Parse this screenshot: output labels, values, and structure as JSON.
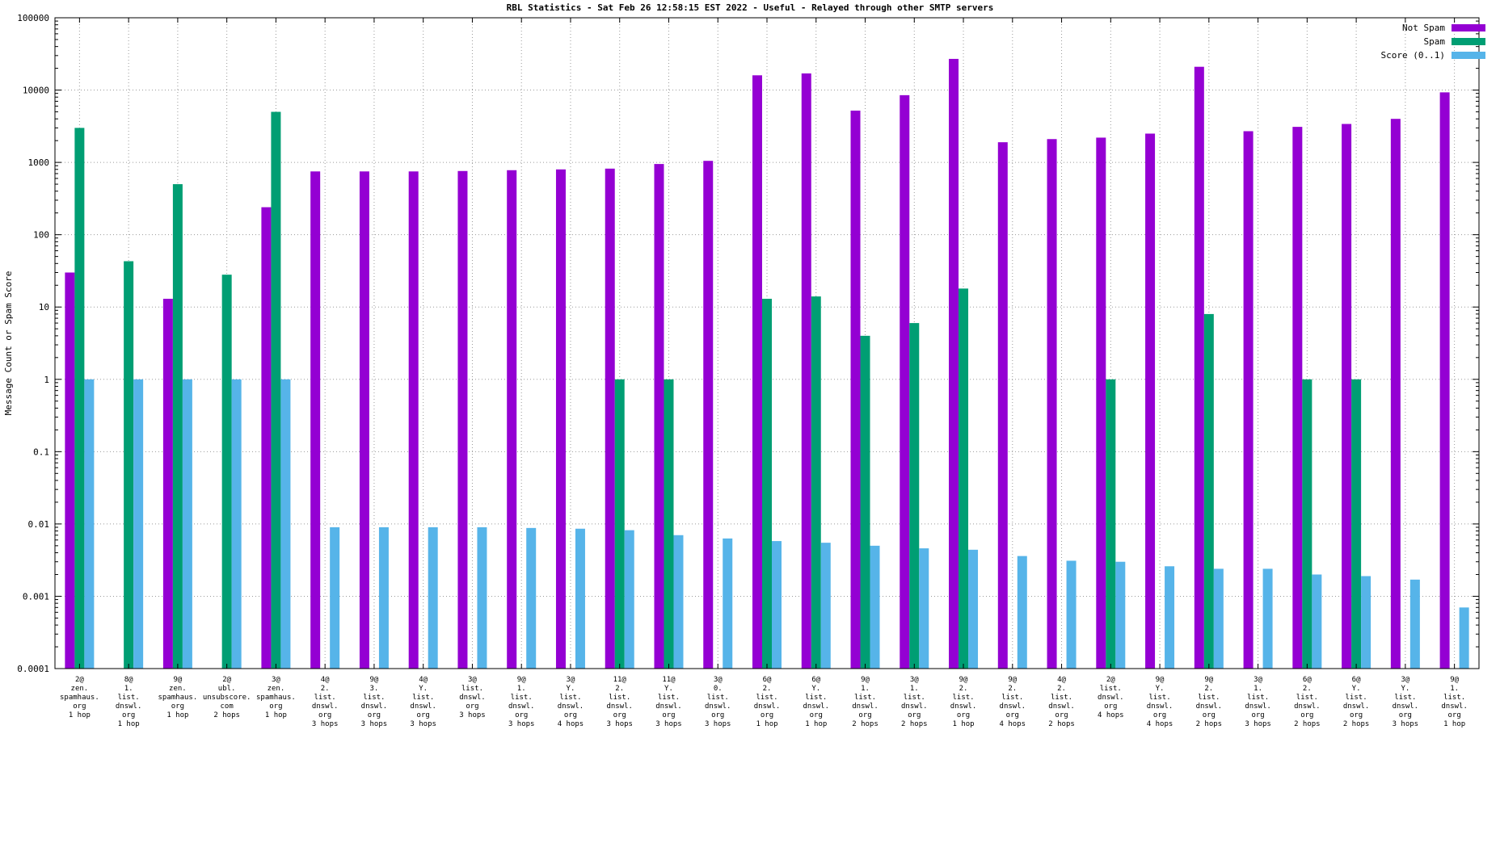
{
  "chart_data": {
    "type": "bar",
    "title": "RBL Statistics - Sat Feb 26 12:58:15 EST 2022 - Useful - Relayed through other SMTP servers",
    "ylabel": "Message Count or Spam Score",
    "y_scale": "log",
    "ylim": [
      0.0001,
      100000
    ],
    "y_ticks": [
      "100000",
      "10000",
      "1000",
      "100",
      "10",
      "1",
      "0.1",
      "0.01",
      "0.001",
      "0.0001"
    ],
    "grid": true,
    "legend_position": "top-right",
    "series_meta": [
      {
        "name": "Not Spam",
        "key": "notspam",
        "color": "#9400d3"
      },
      {
        "name": "Spam",
        "key": "spam",
        "color": "#009e73"
      },
      {
        "name": "Score (0..1)",
        "key": "score",
        "color": "#56b4e9"
      }
    ],
    "groups": [
      {
        "label_lines": [
          "2@",
          "zen.",
          "spamhaus.",
          "org",
          "1 hop"
        ],
        "notspam": 30,
        "spam": 3000,
        "score": 1
      },
      {
        "label_lines": [
          "8@",
          "1.",
          "list.",
          "dnswl.",
          "org",
          "1 hop"
        ],
        "notspam": null,
        "spam": 43,
        "score": 1
      },
      {
        "label_lines": [
          "9@",
          "zen.",
          "spamhaus.",
          "org",
          "1 hop"
        ],
        "notspam": 13,
        "spam": 500,
        "score": 1
      },
      {
        "label_lines": [
          "2@",
          "ubl.",
          "unsubscore.",
          "com",
          "2 hops"
        ],
        "notspam": null,
        "spam": 28,
        "score": 1
      },
      {
        "label_lines": [
          "3@",
          "zen.",
          "spamhaus.",
          "org",
          "1 hop"
        ],
        "notspam": 240,
        "spam": 5000,
        "score": 1
      },
      {
        "label_lines": [
          "4@",
          "2.",
          "list.",
          "dnswl.",
          "org",
          "3 hops"
        ],
        "notspam": 750,
        "spam": null,
        "score": 0.009
      },
      {
        "label_lines": [
          "9@",
          "3.",
          "list.",
          "dnswl.",
          "org",
          "3 hops"
        ],
        "notspam": 750,
        "spam": null,
        "score": 0.009
      },
      {
        "label_lines": [
          "4@",
          "Y.",
          "list.",
          "dnswl.",
          "org",
          "3 hops"
        ],
        "notspam": 750,
        "spam": null,
        "score": 0.009
      },
      {
        "label_lines": [
          "3@",
          "list.",
          "dnswl.",
          "org",
          "3 hops"
        ],
        "notspam": 760,
        "spam": null,
        "score": 0.009
      },
      {
        "label_lines": [
          "9@",
          "1.",
          "list.",
          "dnswl.",
          "org",
          "3 hops"
        ],
        "notspam": 780,
        "spam": null,
        "score": 0.0088
      },
      {
        "label_lines": [
          "3@",
          "Y.",
          "list.",
          "dnswl.",
          "org",
          "4 hops"
        ],
        "notspam": 800,
        "spam": null,
        "score": 0.0086
      },
      {
        "label_lines": [
          "11@",
          "2.",
          "list.",
          "dnswl.",
          "org",
          "3 hops"
        ],
        "notspam": 820,
        "spam": 1,
        "score": 0.0082
      },
      {
        "label_lines": [
          "11@",
          "Y.",
          "list.",
          "dnswl.",
          "org",
          "3 hops"
        ],
        "notspam": 950,
        "spam": 1,
        "score": 0.007
      },
      {
        "label_lines": [
          "3@",
          "0.",
          "list.",
          "dnswl.",
          "org",
          "3 hops"
        ],
        "notspam": 1050,
        "spam": null,
        "score": 0.0063
      },
      {
        "label_lines": [
          "6@",
          "2.",
          "list.",
          "dnswl.",
          "org",
          "1 hop"
        ],
        "notspam": 16000,
        "spam": 13,
        "score": 0.0058
      },
      {
        "label_lines": [
          "6@",
          "Y.",
          "list.",
          "dnswl.",
          "org",
          "1 hop"
        ],
        "notspam": 17000,
        "spam": 14,
        "score": 0.0055
      },
      {
        "label_lines": [
          "9@",
          "1.",
          "list.",
          "dnswl.",
          "org",
          "2 hops"
        ],
        "notspam": 5200,
        "spam": 4,
        "score": 0.005
      },
      {
        "label_lines": [
          "3@",
          "1.",
          "list.",
          "dnswl.",
          "org",
          "2 hops"
        ],
        "notspam": 8500,
        "spam": 6,
        "score": 0.0046
      },
      {
        "label_lines": [
          "9@",
          "2.",
          "list.",
          "dnswl.",
          "org",
          "1 hop"
        ],
        "notspam": 27000,
        "spam": 18,
        "score": 0.0044
      },
      {
        "label_lines": [
          "9@",
          "2.",
          "list.",
          "dnswl.",
          "org",
          "4 hops"
        ],
        "notspam": 1900,
        "spam": null,
        "score": 0.0036
      },
      {
        "label_lines": [
          "4@",
          "2.",
          "list.",
          "dnswl.",
          "org",
          "2 hops"
        ],
        "notspam": 2100,
        "spam": null,
        "score": 0.0031
      },
      {
        "label_lines": [
          "2@",
          "list.",
          "dnswl.",
          "org",
          "4 hops"
        ],
        "notspam": 2200,
        "spam": 1,
        "score": 0.003
      },
      {
        "label_lines": [
          "9@",
          "Y.",
          "list.",
          "dnswl.",
          "org",
          "4 hops"
        ],
        "notspam": 2500,
        "spam": null,
        "score": 0.0026
      },
      {
        "label_lines": [
          "9@",
          "2.",
          "list.",
          "dnswl.",
          "org",
          "2 hops"
        ],
        "notspam": 21000,
        "spam": 8,
        "score": 0.0024
      },
      {
        "label_lines": [
          "3@",
          "1.",
          "list.",
          "dnswl.",
          "org",
          "3 hops"
        ],
        "notspam": 2700,
        "spam": null,
        "score": 0.0024
      },
      {
        "label_lines": [
          "6@",
          "2.",
          "list.",
          "dnswl.",
          "org",
          "2 hops"
        ],
        "notspam": 3100,
        "spam": 1,
        "score": 0.002
      },
      {
        "label_lines": [
          "6@",
          "Y.",
          "list.",
          "dnswl.",
          "org",
          "2 hops"
        ],
        "notspam": 3400,
        "spam": 1,
        "score": 0.0019
      },
      {
        "label_lines": [
          "3@",
          "Y.",
          "list.",
          "dnswl.",
          "org",
          "3 hops"
        ],
        "notspam": 4000,
        "spam": null,
        "score": 0.0017
      },
      {
        "label_lines": [
          "9@",
          "1.",
          "list.",
          "dnswl.",
          "org",
          "1 hop"
        ],
        "notspam": 9300,
        "spam": null,
        "score": 0.0007
      }
    ]
  }
}
